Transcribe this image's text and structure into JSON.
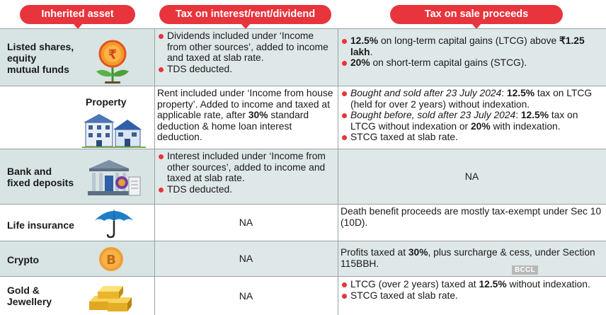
{
  "headers": {
    "asset": "Inherited asset",
    "income_tax": "Tax on interest/rent/dividend",
    "sale_tax": "Tax on sale proceeds"
  },
  "rows": {
    "shares": {
      "asset": "Listed shares, equity mutual funds",
      "asset_lines": [
        "Listed shares,",
        "equity",
        "mutual funds"
      ],
      "icon": "rupee-plant-icon",
      "income_bullets": [
        "Dividends included under ‘Income from other sources’, added to income and taxed at slab rate.",
        "TDS deducted."
      ],
      "sale_b1_bold1": "12.5%",
      "sale_b1_text1": " on long-term capital gains (LTCG) above ",
      "sale_b1_bold2": "₹1.25 lakh",
      "sale_b1_text2": ".",
      "sale_b2_bold": "20%",
      "sale_b2_text": " on short-term capital gains (STCG)."
    },
    "property": {
      "asset": "Property",
      "icon": "houses-icon",
      "income_pre": "Rent included under ‘Income from house property’. Added to income and taxed at applicable rate, after ",
      "income_bold": "30%",
      "income_post": " standard deduction & home loan interest deduction.",
      "sale_b1_ital": "Bought and sold after 23 July 2024",
      "sale_b1_text1": ": ",
      "sale_b1_bold": "12.5%",
      "sale_b1_text2": " tax on LTCG (held for over 2 years) without indexation.",
      "sale_b2_ital": "Bought before, sold after 23 July 2024",
      "sale_b2_text1": ": ",
      "sale_b2_bold1": "12.5%",
      "sale_b2_text2": " tax on LTCG without indexation or ",
      "sale_b2_bold2": "20%",
      "sale_b2_text3": " with indexation.",
      "sale_b3": "STCG taxed at slab rate."
    },
    "bank": {
      "asset": "Bank and fixed deposits",
      "asset_lines": [
        "Bank and",
        "fixed deposits"
      ],
      "icon": "bank-icon",
      "income_bullets": [
        "Interest included under ‘Income from other sources’, added to income and taxed at slab rate.",
        "TDS deducted."
      ],
      "sale": "NA"
    },
    "insurance": {
      "asset": "Life insurance",
      "icon": "umbrella-icon",
      "income": "NA",
      "sale": "Death benefit proceeds are mostly tax-exempt under Sec 10 (10D)."
    },
    "crypto": {
      "asset": "Crypto",
      "icon": "bitcoin-icon",
      "income": "NA",
      "sale_pre": "Profits taxed at ",
      "sale_bold": "30%",
      "sale_post": ", plus surcharge & cess, under Section 115BBH."
    },
    "gold": {
      "asset": "Gold & Jewellery",
      "asset_lines": [
        "Gold &",
        "Jewellery"
      ],
      "icon": "gold-bars-icon",
      "income": "NA",
      "sale_b1_pre": "LTCG (over 2 years) taxed at ",
      "sale_b1_bold": "12.5%",
      "sale_b1_post": " without indexation.",
      "sale_b2": "STCG taxed at slab rate."
    }
  },
  "watermark": "BCCL",
  "colors": {
    "accent": "#e8343c",
    "row_tint": "#dfe8e8",
    "border": "#9aa2a6"
  }
}
